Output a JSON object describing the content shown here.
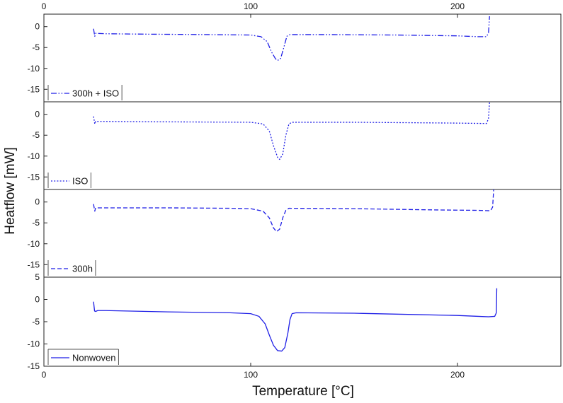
{
  "chart_data": {
    "type": "line",
    "xlabel": "Temperature [°C]",
    "ylabel": "Heatflow [mW]",
    "xlim": [
      0,
      250
    ],
    "x_ticks": [
      "0",
      "100",
      "200"
    ],
    "x_tick_values": [
      0,
      100,
      200
    ],
    "grid": false,
    "color": "#1f1fe6",
    "panels": [
      {
        "name": "300h + ISO",
        "line_style": "dashdotdot",
        "ylim": [
          -18,
          3
        ],
        "y_ticks": [
          "0",
          "-5",
          "-10",
          "-15"
        ],
        "y_tick_values": [
          0,
          -5,
          -10,
          -15
        ],
        "legend_position": "bottom-left",
        "points": [
          [
            24,
            -0.5
          ],
          [
            24.6,
            -2.3
          ],
          [
            25,
            -1.6
          ],
          [
            30,
            -1.7
          ],
          [
            50,
            -1.8
          ],
          [
            80,
            -1.9
          ],
          [
            100,
            -2.0
          ],
          [
            105,
            -2.4
          ],
          [
            108,
            -3.6
          ],
          [
            110,
            -6.0
          ],
          [
            112,
            -7.7
          ],
          [
            113,
            -8.1
          ],
          [
            114.5,
            -7.6
          ],
          [
            116,
            -5.0
          ],
          [
            117.5,
            -2.3
          ],
          [
            119,
            -1.9
          ],
          [
            140,
            -1.9
          ],
          [
            170,
            -2.0
          ],
          [
            200,
            -2.2
          ],
          [
            210,
            -2.4
          ],
          [
            214,
            -2.4
          ],
          [
            215,
            -1.5
          ],
          [
            215.5,
            2.5
          ]
        ]
      },
      {
        "name": "ISO",
        "line_style": "dotted",
        "ylim": [
          -18,
          3
        ],
        "y_ticks": [
          "0",
          "-5",
          "-10",
          "-15"
        ],
        "y_tick_values": [
          0,
          -5,
          -10,
          -15
        ],
        "legend_position": "bottom-left",
        "points": [
          [
            24,
            -0.5
          ],
          [
            24.6,
            -2.3
          ],
          [
            25,
            -1.7
          ],
          [
            30,
            -1.7
          ],
          [
            60,
            -1.8
          ],
          [
            100,
            -1.9
          ],
          [
            106,
            -2.3
          ],
          [
            109,
            -4.0
          ],
          [
            111,
            -7.5
          ],
          [
            113,
            -10.3
          ],
          [
            114,
            -10.8
          ],
          [
            115.5,
            -9.5
          ],
          [
            117,
            -5.0
          ],
          [
            118.5,
            -2.3
          ],
          [
            120,
            -1.9
          ],
          [
            150,
            -1.9
          ],
          [
            200,
            -2.1
          ],
          [
            214,
            -2.2
          ],
          [
            215,
            -1.0
          ],
          [
            215.5,
            3.0
          ]
        ]
      },
      {
        "name": "300h",
        "line_style": "dashed",
        "ylim": [
          -18,
          3
        ],
        "y_ticks": [
          "0",
          "-5",
          "-10",
          "-15"
        ],
        "y_tick_values": [
          0,
          -5,
          -10,
          -15
        ],
        "legend_position": "bottom-left",
        "points": [
          [
            24,
            -0.5
          ],
          [
            24.6,
            -2.2
          ],
          [
            25,
            -1.4
          ],
          [
            30,
            -1.4
          ],
          [
            60,
            -1.4
          ],
          [
            90,
            -1.5
          ],
          [
            100,
            -1.6
          ],
          [
            106,
            -2.2
          ],
          [
            109,
            -3.8
          ],
          [
            111,
            -6.2
          ],
          [
            112.5,
            -7.1
          ],
          [
            114,
            -6.5
          ],
          [
            115.5,
            -3.8
          ],
          [
            117,
            -2.0
          ],
          [
            118.5,
            -1.5
          ],
          [
            150,
            -1.6
          ],
          [
            190,
            -1.9
          ],
          [
            210,
            -2.0
          ],
          [
            216,
            -2.1
          ],
          [
            217,
            -1.2
          ],
          [
            217.5,
            3.0
          ]
        ]
      },
      {
        "name": "Nonwoven",
        "line_style": "solid",
        "ylim": [
          -15,
          5
        ],
        "y_ticks": [
          "5",
          "0",
          "-5",
          "-10",
          "-15"
        ],
        "y_tick_values": [
          5,
          0,
          -5,
          -10,
          -15
        ],
        "legend_position": "bottom-left",
        "points": [
          [
            24,
            -0.5
          ],
          [
            24.5,
            -2.6
          ],
          [
            25,
            -2.7
          ],
          [
            26,
            -2.5
          ],
          [
            30,
            -2.5
          ],
          [
            60,
            -2.8
          ],
          [
            90,
            -3.0
          ],
          [
            100,
            -3.2
          ],
          [
            104,
            -3.8
          ],
          [
            107,
            -5.5
          ],
          [
            109,
            -8.0
          ],
          [
            111,
            -10.3
          ],
          [
            113,
            -11.5
          ],
          [
            115,
            -11.6
          ],
          [
            116.5,
            -10.8
          ],
          [
            118,
            -7.5
          ],
          [
            119,
            -4.5
          ],
          [
            120,
            -3.2
          ],
          [
            122,
            -3.0
          ],
          [
            150,
            -3.1
          ],
          [
            180,
            -3.4
          ],
          [
            200,
            -3.6
          ],
          [
            210,
            -3.8
          ],
          [
            215,
            -3.9
          ],
          [
            218,
            -3.8
          ],
          [
            218.8,
            -3.0
          ],
          [
            219,
            2.5
          ]
        ]
      }
    ]
  }
}
